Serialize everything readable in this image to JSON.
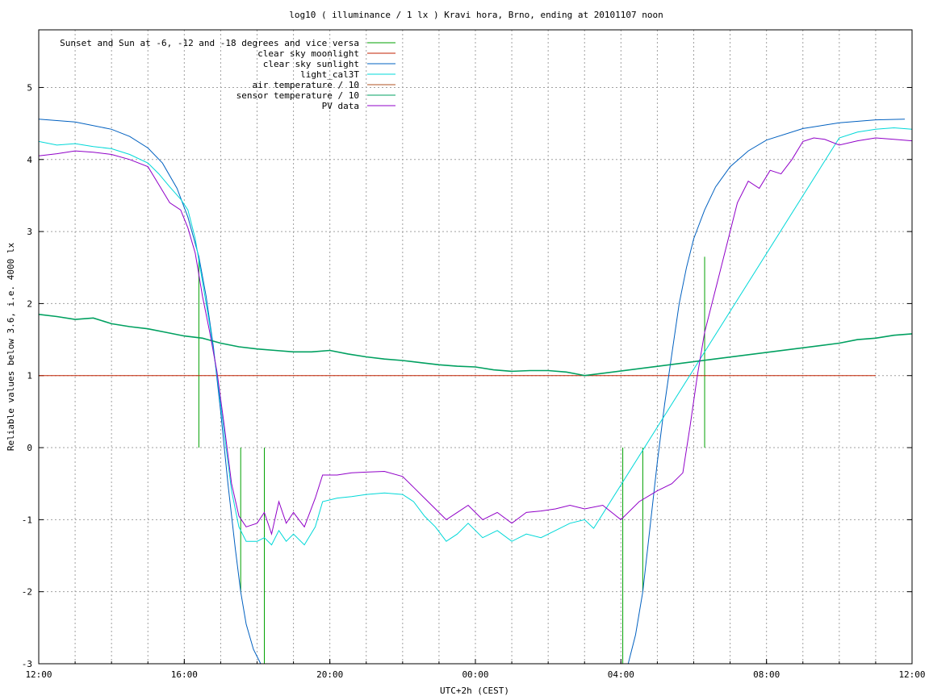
{
  "chart_data": {
    "type": "line",
    "title": "log10 ( illuminance / 1 lx ) Kravi hora, Brno, ending at 20101107 noon",
    "xlabel": "UTC+2h (CEST)",
    "ylabel": "Reliable values below 3.6, i.e. 4000 lx",
    "xlim": [
      0,
      24
    ],
    "ylim": [
      -3,
      5.8
    ],
    "x_ticks": [
      {
        "x": 0,
        "label": "12:00"
      },
      {
        "x": 4,
        "label": "16:00"
      },
      {
        "x": 8,
        "label": "20:00"
      },
      {
        "x": 12,
        "label": "00:00"
      },
      {
        "x": 16,
        "label": "04:00"
      },
      {
        "x": 20,
        "label": "08:00"
      },
      {
        "x": 24,
        "label": "12:00"
      }
    ],
    "x_minor_grid_step": 1,
    "y_ticks": [
      {
        "y": -3,
        "label": "-3"
      },
      {
        "y": -2,
        "label": "-2"
      },
      {
        "y": -1,
        "label": "-1"
      },
      {
        "y": 0,
        "label": "0"
      },
      {
        "y": 1,
        "label": "1"
      },
      {
        "y": 2,
        "label": "2"
      },
      {
        "y": 3,
        "label": "3"
      },
      {
        "y": 4,
        "label": "4"
      },
      {
        "y": 5,
        "label": "5"
      }
    ],
    "grid": true,
    "legend_position": "top-left",
    "series": [
      {
        "name": "Sunset and Sun at -6, -12 and -18 degrees and vice versa",
        "color": "#00a000",
        "style": "impulses",
        "segments": [
          [
            [
              4.4,
              0
            ],
            [
              4.4,
              2.65
            ]
          ],
          [
            [
              5.55,
              0
            ],
            [
              5.55,
              -2.0
            ]
          ],
          [
            [
              6.2,
              0
            ],
            [
              6.2,
              -3.0
            ]
          ],
          [
            [
              16.05,
              0
            ],
            [
              16.05,
              -3.0
            ]
          ],
          [
            [
              16.6,
              0
            ],
            [
              16.6,
              -2.0
            ]
          ],
          [
            [
              18.3,
              0
            ],
            [
              18.3,
              2.65
            ]
          ]
        ]
      },
      {
        "name": "clear sky moonlight",
        "color": "#c02000",
        "points": [
          [
            0,
            1.0
          ],
          [
            23.0,
            1.0
          ]
        ]
      },
      {
        "name": "clear sky sunlight",
        "color": "#0060c0",
        "points": [
          [
            0,
            4.56
          ],
          [
            1,
            4.52
          ],
          [
            2,
            4.42
          ],
          [
            2.5,
            4.32
          ],
          [
            3,
            4.16
          ],
          [
            3.4,
            3.95
          ],
          [
            3.8,
            3.6
          ],
          [
            4.1,
            3.2
          ],
          [
            4.4,
            2.65
          ],
          [
            4.6,
            2.1
          ],
          [
            4.8,
            1.4
          ],
          [
            5.0,
            0.5
          ],
          [
            5.2,
            -0.5
          ],
          [
            5.4,
            -1.4
          ],
          [
            5.55,
            -2.0
          ],
          [
            5.7,
            -2.45
          ],
          [
            5.9,
            -2.8
          ],
          [
            6.1,
            -3.0
          ],
          [
            16.2,
            -3.0
          ],
          [
            16.4,
            -2.6
          ],
          [
            16.6,
            -2.0
          ],
          [
            16.8,
            -1.1
          ],
          [
            17.0,
            -0.2
          ],
          [
            17.2,
            0.6
          ],
          [
            17.4,
            1.3
          ],
          [
            17.6,
            2.0
          ],
          [
            17.8,
            2.5
          ],
          [
            18.0,
            2.9
          ],
          [
            18.3,
            3.3
          ],
          [
            18.6,
            3.62
          ],
          [
            19.0,
            3.9
          ],
          [
            19.5,
            4.12
          ],
          [
            20,
            4.27
          ],
          [
            21,
            4.43
          ],
          [
            22,
            4.51
          ],
          [
            23,
            4.55
          ],
          [
            23.8,
            4.56
          ]
        ]
      },
      {
        "name": "light_cal3T",
        "color": "#00d8d8",
        "points": [
          [
            0,
            4.25
          ],
          [
            0.5,
            4.2
          ],
          [
            1,
            4.22
          ],
          [
            1.5,
            4.18
          ],
          [
            2,
            4.15
          ],
          [
            2.5,
            4.07
          ],
          [
            3,
            3.95
          ],
          [
            3.3,
            3.8
          ],
          [
            3.6,
            3.62
          ],
          [
            3.9,
            3.45
          ],
          [
            4.1,
            3.3
          ],
          [
            4.3,
            2.9
          ],
          [
            4.5,
            2.3
          ],
          [
            4.7,
            1.7
          ],
          [
            4.9,
            1.0
          ],
          [
            5.1,
            0.2
          ],
          [
            5.3,
            -0.6
          ],
          [
            5.5,
            -1.1
          ],
          [
            5.7,
            -1.3
          ],
          [
            6.0,
            -1.3
          ],
          [
            6.2,
            -1.25
          ],
          [
            6.4,
            -1.35
          ],
          [
            6.6,
            -1.15
          ],
          [
            6.8,
            -1.3
          ],
          [
            7.0,
            -1.2
          ],
          [
            7.3,
            -1.35
          ],
          [
            7.6,
            -1.1
          ],
          [
            7.8,
            -0.75
          ],
          [
            8.2,
            -0.7
          ],
          [
            8.6,
            -0.68
          ],
          [
            9.0,
            -0.65
          ],
          [
            9.5,
            -0.63
          ],
          [
            10.0,
            -0.65
          ],
          [
            10.3,
            -0.75
          ],
          [
            10.6,
            -0.95
          ],
          [
            10.9,
            -1.1
          ],
          [
            11.2,
            -1.3
          ],
          [
            11.5,
            -1.2
          ],
          [
            11.8,
            -1.05
          ],
          [
            12.2,
            -1.25
          ],
          [
            12.6,
            -1.15
          ],
          [
            13.0,
            -1.3
          ],
          [
            13.4,
            -1.2
          ],
          [
            13.8,
            -1.25
          ],
          [
            14.2,
            -1.15
          ],
          [
            14.6,
            -1.05
          ],
          [
            15.0,
            -1.0
          ],
          [
            15.25,
            -1.12
          ],
          [
            22.0,
            4.3
          ],
          [
            22.5,
            4.38
          ],
          [
            23.0,
            4.42
          ],
          [
            23.5,
            4.44
          ],
          [
            24,
            4.42
          ]
        ]
      },
      {
        "name": "air temperature / 10",
        "color": "#b05020",
        "points": []
      },
      {
        "name": "sensor temperature / 10",
        "color": "#00a060",
        "points": [
          [
            0,
            1.85
          ],
          [
            0.5,
            1.82
          ],
          [
            1.0,
            1.78
          ],
          [
            1.5,
            1.8
          ],
          [
            2.0,
            1.72
          ],
          [
            2.5,
            1.68
          ],
          [
            3.0,
            1.65
          ],
          [
            3.5,
            1.6
          ],
          [
            4.0,
            1.55
          ],
          [
            4.5,
            1.52
          ],
          [
            5.0,
            1.45
          ],
          [
            5.5,
            1.4
          ],
          [
            6.0,
            1.37
          ],
          [
            6.5,
            1.35
          ],
          [
            7.0,
            1.33
          ],
          [
            7.5,
            1.33
          ],
          [
            8.0,
            1.35
          ],
          [
            8.5,
            1.3
          ],
          [
            9.0,
            1.26
          ],
          [
            9.5,
            1.23
          ],
          [
            10.0,
            1.21
          ],
          [
            10.5,
            1.18
          ],
          [
            11.0,
            1.15
          ],
          [
            11.5,
            1.13
          ],
          [
            12.0,
            1.12
          ],
          [
            12.5,
            1.08
          ],
          [
            13.0,
            1.06
          ],
          [
            13.5,
            1.07
          ],
          [
            14.0,
            1.07
          ],
          [
            14.5,
            1.05
          ],
          [
            14.8,
            1.02
          ],
          [
            15.0,
            1.0
          ],
          [
            22.0,
            1.45
          ],
          [
            22.5,
            1.5
          ],
          [
            23.0,
            1.52
          ],
          [
            23.5,
            1.56
          ],
          [
            24,
            1.58
          ]
        ]
      },
      {
        "name": "PV data",
        "color": "#9000c8",
        "points": [
          [
            0,
            4.05
          ],
          [
            0.5,
            4.08
          ],
          [
            1,
            4.12
          ],
          [
            1.5,
            4.1
          ],
          [
            2,
            4.07
          ],
          [
            2.5,
            4.0
          ],
          [
            3,
            3.9
          ],
          [
            3.3,
            3.65
          ],
          [
            3.6,
            3.4
          ],
          [
            3.9,
            3.3
          ],
          [
            4.1,
            3.05
          ],
          [
            4.3,
            2.7
          ],
          [
            4.5,
            2.1
          ],
          [
            4.7,
            1.6
          ],
          [
            4.9,
            1.05
          ],
          [
            5.1,
            0.3
          ],
          [
            5.3,
            -0.5
          ],
          [
            5.5,
            -0.95
          ],
          [
            5.7,
            -1.1
          ],
          [
            6.0,
            -1.05
          ],
          [
            6.2,
            -0.9
          ],
          [
            6.4,
            -1.2
          ],
          [
            6.6,
            -0.75
          ],
          [
            6.8,
            -1.05
          ],
          [
            7.0,
            -0.9
          ],
          [
            7.3,
            -1.1
          ],
          [
            7.6,
            -0.7
          ],
          [
            7.8,
            -0.38
          ],
          [
            8.2,
            -0.38
          ],
          [
            8.6,
            -0.35
          ],
          [
            9.0,
            -0.34
          ],
          [
            9.5,
            -0.33
          ],
          [
            10.0,
            -0.4
          ],
          [
            10.3,
            -0.55
          ],
          [
            10.6,
            -0.7
          ],
          [
            10.9,
            -0.85
          ],
          [
            11.2,
            -1.0
          ],
          [
            11.5,
            -0.9
          ],
          [
            11.8,
            -0.8
          ],
          [
            12.2,
            -1.0
          ],
          [
            12.6,
            -0.9
          ],
          [
            13.0,
            -1.05
          ],
          [
            13.4,
            -0.9
          ],
          [
            13.8,
            -0.88
          ],
          [
            14.2,
            -0.85
          ],
          [
            14.6,
            -0.8
          ],
          [
            15.0,
            -0.85
          ],
          [
            15.5,
            -0.8
          ],
          [
            16.0,
            -1.0
          ],
          [
            16.5,
            -0.75
          ],
          [
            17.0,
            -0.6
          ],
          [
            17.4,
            -0.5
          ],
          [
            17.7,
            -0.35
          ],
          [
            17.9,
            0.3
          ],
          [
            18.1,
            1.0
          ],
          [
            18.3,
            1.6
          ],
          [
            18.6,
            2.2
          ],
          [
            18.9,
            2.8
          ],
          [
            19.2,
            3.4
          ],
          [
            19.5,
            3.7
          ],
          [
            19.8,
            3.6
          ],
          [
            20.1,
            3.85
          ],
          [
            20.4,
            3.8
          ],
          [
            20.7,
            4.0
          ],
          [
            21.0,
            4.25
          ],
          [
            21.3,
            4.3
          ],
          [
            21.6,
            4.28
          ],
          [
            22.0,
            4.2
          ],
          [
            22.5,
            4.26
          ],
          [
            23.0,
            4.3
          ],
          [
            23.5,
            4.28
          ],
          [
            24,
            4.26
          ]
        ]
      }
    ]
  }
}
